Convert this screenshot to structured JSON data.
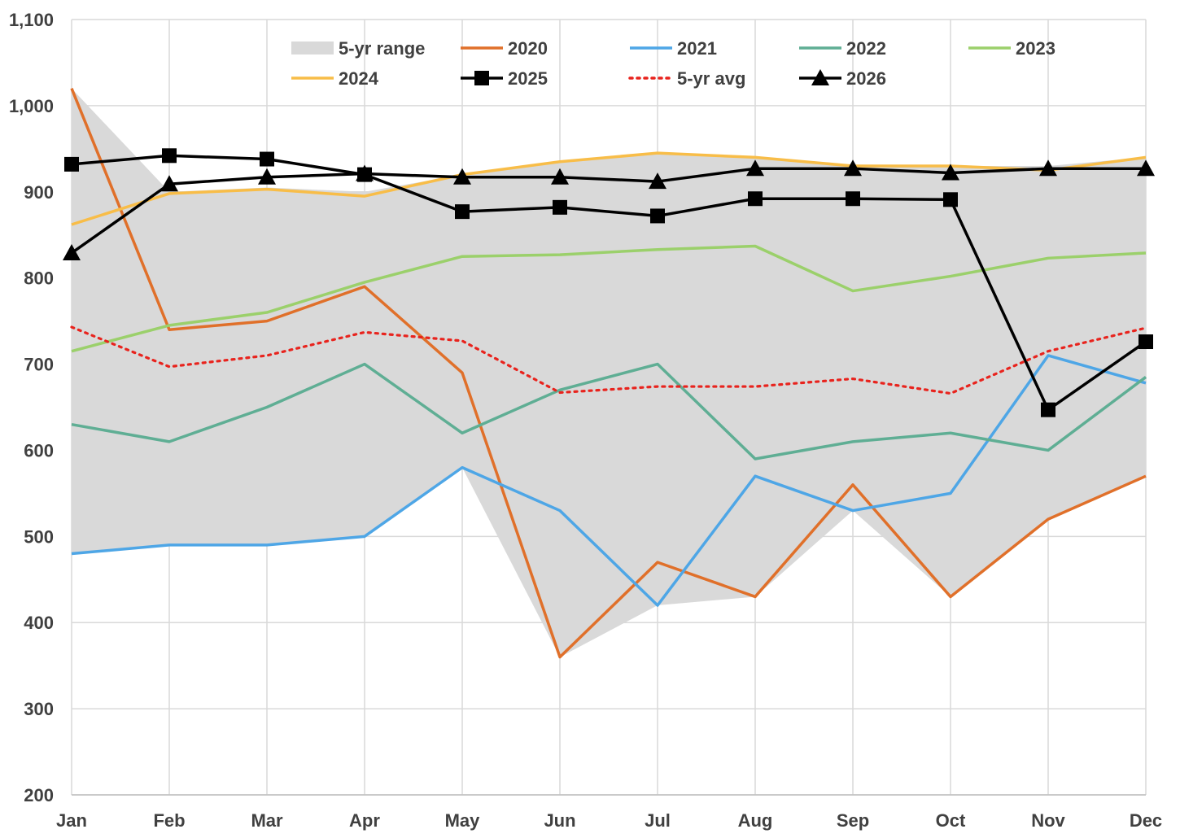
{
  "chart_data": {
    "type": "line",
    "title": "",
    "xlabel": "",
    "ylabel": "",
    "ylim": [
      200,
      1100
    ],
    "yticks": [
      200,
      300,
      400,
      500,
      600,
      700,
      800,
      900,
      1000,
      1100
    ],
    "ytick_labels": [
      "200",
      "300",
      "400",
      "500",
      "600",
      "700",
      "800",
      "900",
      "1,000",
      "1,100"
    ],
    "categories": [
      "Jan",
      "Feb",
      "Mar",
      "Apr",
      "May",
      "Jun",
      "Jul",
      "Aug",
      "Sep",
      "Oct",
      "Nov",
      "Dec"
    ],
    "grid": true,
    "legend_position": "top",
    "range": {
      "name": "5-yr range",
      "color": "#d9d9d9",
      "min": [
        480,
        490,
        490,
        500,
        580,
        360,
        420,
        430,
        530,
        430,
        520,
        570
      ],
      "max": [
        1020,
        900,
        905,
        900,
        920,
        935,
        945,
        940,
        930,
        930,
        930,
        940
      ]
    },
    "series": [
      {
        "name": "2020",
        "color": "#e0702a",
        "style": "solid",
        "marker": "none",
        "values": [
          1020,
          740,
          750,
          790,
          690,
          360,
          470,
          430,
          560,
          430,
          520,
          570
        ]
      },
      {
        "name": "2021",
        "color": "#4ea6e6",
        "style": "solid",
        "marker": "none",
        "values": [
          480,
          490,
          490,
          500,
          580,
          530,
          420,
          570,
          530,
          550,
          710,
          678
        ]
      },
      {
        "name": "2022",
        "color": "#5fae94",
        "style": "solid",
        "marker": "none",
        "values": [
          630,
          610,
          650,
          700,
          620,
          670,
          700,
          590,
          610,
          620,
          600,
          685
        ]
      },
      {
        "name": "2023",
        "color": "#9bd06b",
        "style": "solid",
        "marker": "none",
        "values": [
          715,
          745,
          760,
          795,
          825,
          827,
          833,
          837,
          785,
          802,
          823,
          829
        ]
      },
      {
        "name": "2024",
        "color": "#f8bd48",
        "style": "solid",
        "marker": "none",
        "values": [
          862,
          898,
          903,
          895,
          920,
          935,
          945,
          940,
          930,
          930,
          925,
          940
        ]
      },
      {
        "name": "2025",
        "color": "#000000",
        "style": "solid",
        "marker": "square",
        "values": [
          932,
          942,
          938,
          920,
          877,
          882,
          872,
          892,
          892,
          891,
          647,
          726
        ]
      },
      {
        "name": "5-yr avg",
        "color": "#e8231d",
        "style": "dotted",
        "marker": "none",
        "values": [
          743,
          697,
          710,
          737,
          727,
          667,
          674,
          674,
          683,
          666,
          715,
          742
        ]
      },
      {
        "name": "2026",
        "color": "#000000",
        "style": "solid",
        "marker": "triangle",
        "values": [
          829,
          909,
          917,
          921,
          917,
          917,
          912,
          927,
          927,
          922,
          927,
          927
        ]
      }
    ]
  }
}
